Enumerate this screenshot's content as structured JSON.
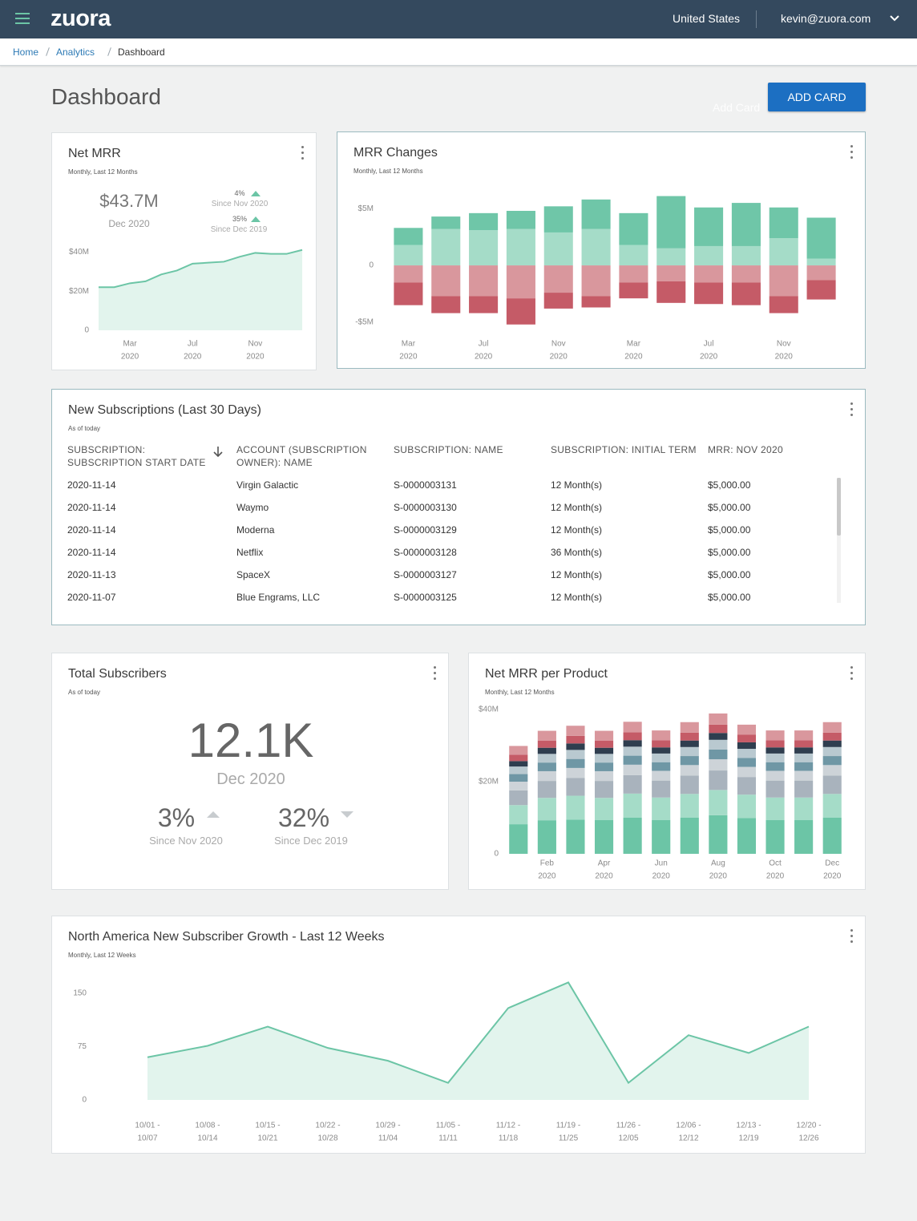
{
  "header": {
    "logo": "zuora",
    "region": "United States",
    "user": "kevin@zuora.com"
  },
  "breadcrumb": [
    "Home",
    "Analytics",
    "Dashboard"
  ],
  "page_title": "Dashboard",
  "add_card_button": "ADD CARD",
  "add_card_ghost": "Add Card",
  "cards": {
    "net_mrr": {
      "title": "Net MRR",
      "subtitle": "Monthly, Last 12 Months",
      "kpi": "$43.7M",
      "kpi_period": "Dec 2020",
      "changes": [
        {
          "value": "4%",
          "since": "Since Nov 2020"
        },
        {
          "value": "35%",
          "since": "Since Dec 2019"
        }
      ],
      "chart": {
        "type": "area",
        "color": "#6cc5a6",
        "area_color": "#e2f4ed",
        "categories": [
          null,
          null,
          [
            "Mar",
            "2020"
          ],
          null,
          null,
          null,
          [
            "Jul",
            "2020"
          ],
          null,
          null,
          null,
          [
            "Nov",
            "2020"
          ],
          null,
          null,
          null
        ],
        "values": [
          22,
          22,
          24,
          25,
          28.5,
          30.5,
          34,
          34.5,
          35,
          37.5,
          39.5,
          39,
          39,
          41
        ],
        "ylim": [
          0,
          45
        ],
        "yticks": [
          0,
          {
            "value": 20,
            "label": "$20M"
          },
          {
            "value": 40,
            "label": "$40M"
          }
        ]
      }
    },
    "mrr_changes": {
      "title": "MRR Changes",
      "subtitle": "Monthly, Last 12 Months",
      "chart": {
        "type": "bar",
        "stacked": true,
        "categories": [
          [
            "Mar",
            "2020"
          ],
          null,
          [
            "Jul",
            "2020"
          ],
          null,
          [
            "Nov",
            "2020"
          ],
          null,
          [
            "Mar",
            "2020"
          ],
          null,
          [
            "Jul",
            "2020"
          ],
          null,
          [
            "Nov",
            "2020"
          ],
          null
        ],
        "series": [
          {
            "color": "#a5dcc8",
            "values": [
              1.8,
              3.2,
              3.1,
              3.2,
              2.9,
              3.2,
              1.8,
              1.5,
              1.7,
              1.7,
              2.4,
              0.6
            ]
          },
          {
            "color": "#6fc6a8",
            "values": [
              1.5,
              1.1,
              1.5,
              1.6,
              2.3,
              2.6,
              2.8,
              4.6,
              3.4,
              3.8,
              2.7,
              3.6
            ]
          },
          {
            "color": "#d9979d",
            "values": [
              -1.5,
              -2.7,
              -2.7,
              -2.9,
              -2.4,
              -2.7,
              -1.5,
              -1.4,
              -1.5,
              -1.5,
              -2.7,
              -1.3
            ]
          },
          {
            "color": "#c55b67",
            "values": [
              -2.0,
              -1.5,
              -1.5,
              -2.3,
              -1.4,
              -1.0,
              -1.4,
              -1.9,
              -1.9,
              -2.0,
              -1.5,
              -1.7
            ]
          }
        ],
        "ylim": [
          -5.5,
          6
        ],
        "yticks": [
          {
            "value": -5,
            "label": "-$5M"
          },
          0,
          {
            "value": 5,
            "label": "$5M"
          }
        ]
      }
    },
    "new_subscriptions": {
      "title": "New Subscriptions (Last 30 Days)",
      "subtitle": "As of today",
      "table": {
        "columns": [
          "SUBSCRIPTION: SUBSCRIPTION START DATE",
          "ACCOUNT (SUBSCRIPTION OWNER): NAME",
          "SUBSCRIPTION: NAME",
          "SUBSCRIPTION: INITIAL TERM",
          "MRR: NOV 2020"
        ],
        "rows": [
          [
            "2020-11-14",
            "Virgin Galactic",
            "S-0000003131",
            "12 Month(s)",
            "$5,000.00"
          ],
          [
            "2020-11-14",
            "Waymo",
            "S-0000003130",
            "12 Month(s)",
            "$5,000.00"
          ],
          [
            "2020-11-14",
            "Moderna",
            "S-0000003129",
            "12 Month(s)",
            "$5,000.00"
          ],
          [
            "2020-11-14",
            "Netflix",
            "S-0000003128",
            "36 Month(s)",
            "$5,000.00"
          ],
          [
            "2020-11-13",
            "SpaceX",
            "S-0000003127",
            "12 Month(s)",
            "$5,000.00"
          ],
          [
            "2020-11-07",
            "Blue Engrams, LLC",
            "S-0000003125",
            "12 Month(s)",
            "$5,000.00"
          ]
        ]
      }
    },
    "total_subscribers": {
      "title": "Total Subscribers",
      "subtitle": "As of today",
      "kpi": "12.1K",
      "kpi_period": "Dec 2020",
      "changes": [
        {
          "value": "3%",
          "since": "Since Nov 2020"
        },
        {
          "value": "32%",
          "since": "Since Dec 2019"
        }
      ]
    },
    "net_mrr_per_product": {
      "title": "Net MRR per Product",
      "subtitle": "Monthly, Last 12 Months",
      "chart": {
        "type": "bar",
        "stacked": true,
        "categories": [
          null,
          [
            "Feb",
            "2020"
          ],
          null,
          [
            "Apr",
            "2020"
          ],
          null,
          [
            "Jun",
            "2020"
          ],
          null,
          [
            "Aug",
            "2020"
          ],
          null,
          [
            "Oct",
            "2020"
          ],
          null,
          [
            "Dec",
            "2020"
          ]
        ],
        "series": [
          {
            "color": "#6cc5a6",
            "values": [
              8.2,
              9.3,
              9.5,
              9.4,
              10.0,
              9.4,
              10.0,
              10.7,
              9.9,
              9.4,
              9.4,
              10.0
            ]
          },
          {
            "color": "#a5dcc8",
            "values": [
              5.3,
              6.2,
              6.6,
              6.1,
              6.7,
              6.2,
              6.6,
              7.0,
              6.5,
              6.2,
              6.2,
              6.6
            ]
          },
          {
            "color": "#a9b3bd",
            "values": [
              4.1,
              4.7,
              4.9,
              4.7,
              5.1,
              4.7,
              5.1,
              5.4,
              4.9,
              4.7,
              4.7,
              5.1
            ]
          },
          {
            "color": "#cdd3d8",
            "values": [
              2.4,
              2.7,
              2.8,
              2.7,
              2.9,
              2.7,
              2.9,
              3.1,
              2.8,
              2.7,
              2.7,
              2.9
            ]
          },
          {
            "color": "#6f97a5",
            "values": [
              2.1,
              2.4,
              2.5,
              2.4,
              2.5,
              2.4,
              2.5,
              2.7,
              2.5,
              2.4,
              2.4,
              2.5
            ]
          },
          {
            "color": "#b9c9d0",
            "values": [
              2.1,
              2.4,
              2.5,
              2.4,
              2.5,
              2.4,
              2.5,
              2.7,
              2.5,
              2.4,
              2.4,
              2.5
            ]
          },
          {
            "color": "#2f3e4f",
            "values": [
              1.5,
              1.7,
              1.8,
              1.7,
              1.8,
              1.7,
              1.8,
              1.9,
              1.8,
              1.7,
              1.7,
              1.8
            ]
          },
          {
            "color": "#c55b67",
            "values": [
              1.8,
              2.0,
              2.1,
              2.0,
              2.2,
              2.0,
              2.2,
              2.3,
              2.1,
              2.0,
              2.0,
              2.2
            ]
          },
          {
            "color": "#d9979d",
            "values": [
              2.4,
              2.7,
              2.8,
              2.7,
              2.9,
              2.7,
              2.9,
              3.1,
              2.8,
              2.7,
              2.7,
              2.9
            ]
          }
        ],
        "ylim": [
          0,
          40
        ],
        "yticks": [
          0,
          {
            "value": 20,
            "label": "$20M"
          },
          {
            "value": 40,
            "label": "$40M"
          }
        ]
      }
    },
    "na_growth": {
      "title": "North America New Subscriber Growth - Last 12 Weeks",
      "subtitle": "Monthly, Last 12 Weeks",
      "chart": {
        "type": "area",
        "color": "#6cc5a6",
        "area_color": "#e2f4ed",
        "categories": [
          [
            "10/01 -",
            "10/07"
          ],
          [
            "10/08 -",
            "10/14"
          ],
          [
            "10/15 -",
            "10/21"
          ],
          [
            "10/22 -",
            "10/28"
          ],
          [
            "10/29 -",
            "11/04"
          ],
          [
            "11/05 -",
            "11/11"
          ],
          [
            "11/12 -",
            "11/18"
          ],
          [
            "11/19 -",
            "11/25"
          ],
          [
            "11/26 -",
            "12/05"
          ],
          [
            "12/06 -",
            "12/12"
          ],
          [
            "12/13 -",
            "12/19"
          ],
          [
            "12/20 -",
            "12/26"
          ]
        ],
        "values": [
          60,
          76,
          103,
          73,
          55,
          24,
          129,
          165,
          24,
          91,
          66,
          103
        ],
        "ylim": [
          0,
          170
        ],
        "yticks": [
          0,
          75,
          150
        ]
      }
    }
  }
}
